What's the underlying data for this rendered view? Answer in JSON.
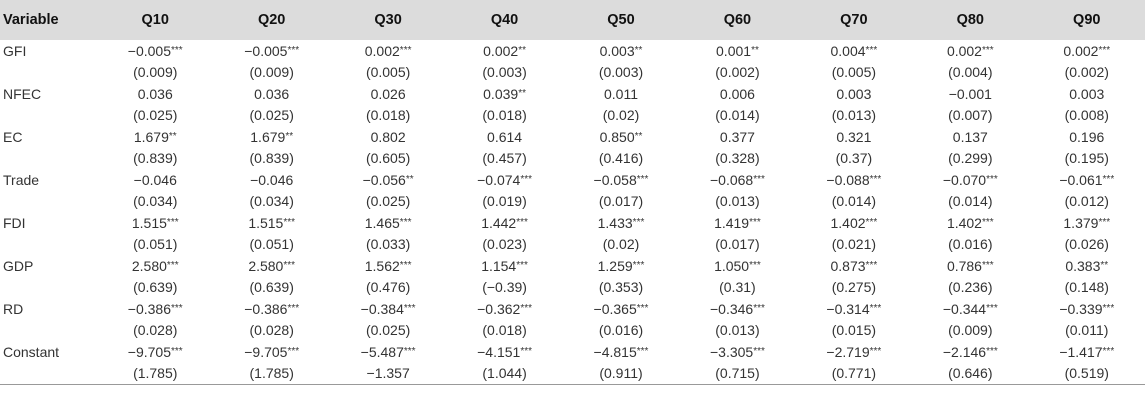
{
  "table": {
    "headers": [
      "Variable",
      "Q10",
      "Q20",
      "Q30",
      "Q40",
      "Q50",
      "Q60",
      "Q70",
      "Q80",
      "Q90"
    ],
    "rows": [
      {
        "variable": "GFI",
        "coefs": [
          {
            "v": "−0.005",
            "s": "***"
          },
          {
            "v": "−0.005",
            "s": "***"
          },
          {
            "v": "0.002",
            "s": "***"
          },
          {
            "v": "0.002",
            "s": "**"
          },
          {
            "v": "0.003",
            "s": "**"
          },
          {
            "v": "0.001",
            "s": "**"
          },
          {
            "v": "0.004",
            "s": "***"
          },
          {
            "v": "0.002",
            "s": "***"
          },
          {
            "v": "0.002",
            "s": "***"
          }
        ],
        "se": [
          "(0.009)",
          "(0.009)",
          "(0.005)",
          "(0.003)",
          "(0.003)",
          "(0.002)",
          "(0.005)",
          "(0.004)",
          "(0.002)"
        ]
      },
      {
        "variable": "NFEC",
        "coefs": [
          {
            "v": "0.036",
            "s": ""
          },
          {
            "v": "0.036",
            "s": ""
          },
          {
            "v": "0.026",
            "s": ""
          },
          {
            "v": "0.039",
            "s": "**"
          },
          {
            "v": "0.011",
            "s": ""
          },
          {
            "v": "0.006",
            "s": ""
          },
          {
            "v": "0.003",
            "s": ""
          },
          {
            "v": "−0.001",
            "s": ""
          },
          {
            "v": "0.003",
            "s": ""
          }
        ],
        "se": [
          "(0.025)",
          "(0.025)",
          "(0.018)",
          "(0.018)",
          "(0.02)",
          "(0.014)",
          "(0.013)",
          "(0.007)",
          "(0.008)"
        ]
      },
      {
        "variable": "EC",
        "coefs": [
          {
            "v": "1.679",
            "s": "**"
          },
          {
            "v": "1.679",
            "s": "**"
          },
          {
            "v": "0.802",
            "s": ""
          },
          {
            "v": "0.614",
            "s": ""
          },
          {
            "v": "0.850",
            "s": "**"
          },
          {
            "v": "0.377",
            "s": ""
          },
          {
            "v": "0.321",
            "s": ""
          },
          {
            "v": "0.137",
            "s": ""
          },
          {
            "v": "0.196",
            "s": ""
          }
        ],
        "se": [
          "(0.839)",
          "(0.839)",
          "(0.605)",
          "(0.457)",
          "(0.416)",
          "(0.328)",
          "(0.37)",
          "(0.299)",
          "(0.195)"
        ]
      },
      {
        "variable": "Trade",
        "coefs": [
          {
            "v": "−0.046",
            "s": ""
          },
          {
            "v": "−0.046",
            "s": ""
          },
          {
            "v": "−0.056",
            "s": "**"
          },
          {
            "v": "−0.074",
            "s": "***"
          },
          {
            "v": "−0.058",
            "s": "***"
          },
          {
            "v": "−0.068",
            "s": "***"
          },
          {
            "v": "−0.088",
            "s": "***"
          },
          {
            "v": "−0.070",
            "s": "***"
          },
          {
            "v": "−0.061",
            "s": "***"
          }
        ],
        "se": [
          "(0.034)",
          "(0.034)",
          "(0.025)",
          "(0.019)",
          "(0.017)",
          "(0.013)",
          "(0.014)",
          "(0.014)",
          "(0.012)"
        ]
      },
      {
        "variable": "FDI",
        "coefs": [
          {
            "v": "1.515",
            "s": "***"
          },
          {
            "v": "1.515",
            "s": "***"
          },
          {
            "v": "1.465",
            "s": "***"
          },
          {
            "v": "1.442",
            "s": "***"
          },
          {
            "v": "1.433",
            "s": "***"
          },
          {
            "v": "1.419",
            "s": "***"
          },
          {
            "v": "1.402",
            "s": "***"
          },
          {
            "v": "1.402",
            "s": "***"
          },
          {
            "v": "1.379",
            "s": "***"
          }
        ],
        "se": [
          "(0.051)",
          "(0.051)",
          "(0.033)",
          "(0.023)",
          "(0.02)",
          "(0.017)",
          "(0.021)",
          "(0.016)",
          "(0.026)"
        ]
      },
      {
        "variable": "GDP",
        "coefs": [
          {
            "v": "2.580",
            "s": "***"
          },
          {
            "v": "2.580",
            "s": "***"
          },
          {
            "v": "1.562",
            "s": "***"
          },
          {
            "v": "1.154",
            "s": "***"
          },
          {
            "v": "1.259",
            "s": "***"
          },
          {
            "v": "1.050",
            "s": "***"
          },
          {
            "v": "0.873",
            "s": "***"
          },
          {
            "v": "0.786",
            "s": "***"
          },
          {
            "v": "0.383",
            "s": "**"
          }
        ],
        "se": [
          "(0.639)",
          "(0.639)",
          "(0.476)",
          "(−0.39)",
          "(0.353)",
          "(0.31)",
          "(0.275)",
          "(0.236)",
          "(0.148)"
        ]
      },
      {
        "variable": "RD",
        "coefs": [
          {
            "v": "−0.386",
            "s": "***"
          },
          {
            "v": "−0.386",
            "s": "***"
          },
          {
            "v": "−0.384",
            "s": "***"
          },
          {
            "v": "−0.362",
            "s": "***"
          },
          {
            "v": "−0.365",
            "s": "***"
          },
          {
            "v": "−0.346",
            "s": "***"
          },
          {
            "v": "−0.314",
            "s": "***"
          },
          {
            "v": "−0.344",
            "s": "***"
          },
          {
            "v": "−0.339",
            "s": "***"
          }
        ],
        "se": [
          "(0.028)",
          "(0.028)",
          "(0.025)",
          "(0.018)",
          "(0.016)",
          "(0.013)",
          "(0.015)",
          "(0.009)",
          "(0.011)"
        ]
      },
      {
        "variable": "Constant",
        "coefs": [
          {
            "v": "−9.705",
            "s": "***"
          },
          {
            "v": "−9.705",
            "s": "***"
          },
          {
            "v": "−5.487",
            "s": "***"
          },
          {
            "v": "−4.151",
            "s": "***"
          },
          {
            "v": "−4.815",
            "s": "***"
          },
          {
            "v": "−3.305",
            "s": "***"
          },
          {
            "v": "−2.719",
            "s": "***"
          },
          {
            "v": "−2.146",
            "s": "***"
          },
          {
            "v": "−1.417",
            "s": "***"
          }
        ],
        "se": [
          "(1.785)",
          "(1.785)",
          "−1.357",
          "(1.044)",
          "(0.911)",
          "(0.715)",
          "(0.771)",
          "(0.646)",
          "(0.519)"
        ]
      }
    ]
  }
}
